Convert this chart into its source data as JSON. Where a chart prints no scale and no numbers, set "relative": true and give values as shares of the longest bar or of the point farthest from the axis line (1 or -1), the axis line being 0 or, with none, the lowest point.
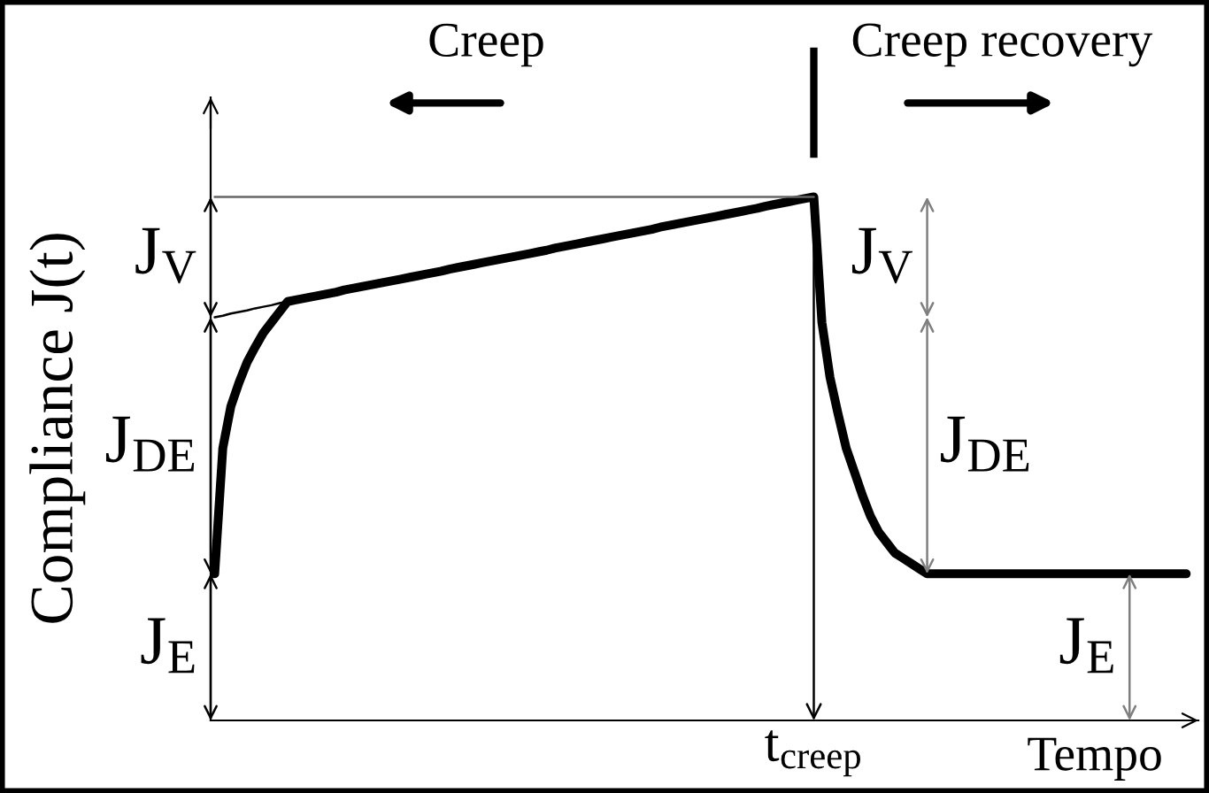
{
  "chart_data": {
    "type": "line",
    "relative": true,
    "ylabel": "Compliance J(t)",
    "xlabel": "Tempo",
    "categories": [
      null,
      null,
      null,
      null,
      null,
      null,
      null,
      null,
      null,
      null,
      null,
      null,
      null,
      null,
      null,
      null,
      null,
      null,
      null,
      null,
      null,
      null,
      null,
      null,
      null,
      null,
      null,
      null,
      null,
      null,
      null,
      null,
      null,
      null,
      null,
      null,
      null,
      null,
      null,
      null,
      null,
      null,
      null,
      null,
      null,
      null,
      null,
      null,
      null,
      null,
      null,
      null,
      null,
      null,
      null,
      null,
      null,
      null,
      null,
      null,
      null,
      null,
      null,
      null,
      null,
      null,
      null,
      null,
      null,
      null,
      null,
      null,
      null,
      null,
      null,
      null,
      null,
      null,
      null,
      null,
      null,
      null,
      null,
      null,
      null,
      null,
      null,
      null,
      null,
      null,
      null,
      null,
      null,
      null,
      null,
      null,
      null,
      null,
      null,
      null,
      null,
      null,
      null,
      null,
      null,
      null,
      null,
      null,
      null,
      null,
      null,
      null,
      null,
      null,
      null,
      null,
      null,
      null,
      null,
      null,
      null,
      null
    ],
    "annotations": [
      "Creep",
      "Creep recovery",
      "t$_{creep}$",
      "J$_{V}$",
      "J$_{DE}$",
      "J$_{E}$",
      "J$_{V}$",
      "J$_{DE}$",
      "J$_{E}$"
    ],
    "series": [
      {
        "color": "#000000",
        "values": [
          0.28,
          0.52,
          0.6,
          0.645,
          0.684,
          0.713,
          0.74,
          0.76,
          0.78,
          0.8,
          0.803,
          0.806,
          0.809,
          0.812,
          0.815,
          0.818,
          0.822,
          0.825,
          0.828,
          0.831,
          0.834,
          0.837,
          0.84,
          0.843,
          0.846,
          0.849,
          0.852,
          0.855,
          0.858,
          0.862,
          0.865,
          0.868,
          0.871,
          0.874,
          0.877,
          0.88,
          0.883,
          0.886,
          0.889,
          0.892,
          0.895,
          0.898,
          0.902,
          0.905,
          0.908,
          0.911,
          0.914,
          0.917,
          0.92,
          0.923,
          0.926,
          0.929,
          0.932,
          0.935,
          0.938,
          0.942,
          0.945,
          0.948,
          0.951,
          0.954,
          0.957,
          0.96,
          0.963,
          0.966,
          0.969,
          0.972,
          0.975,
          0.978,
          0.982,
          0.985,
          0.988,
          0.991,
          0.994,
          0.997,
          1.0,
          0.76,
          0.655,
          0.585,
          0.52,
          0.475,
          0.43,
          0.39,
          0.36,
          0.34,
          0.32,
          0.31,
          0.3,
          0.29,
          0.28,
          0.28,
          0.28,
          0.28,
          0.28,
          0.28,
          0.28,
          0.28,
          0.28,
          0.28,
          0.28,
          0.28,
          0.28,
          0.28,
          0.28,
          0.28,
          0.28,
          0.28,
          0.28,
          0.28,
          0.28,
          0.28,
          0.28,
          0.28,
          0.28,
          0.28,
          0.28,
          0.28,
          0.28,
          0.28,
          0.28,
          0.28,
          0.28,
          null
        ]
      },
      {
        "color": "#000000",
        "values": [
          0.77,
          0.773,
          0.777,
          0.78,
          0.783,
          0.787,
          0.79,
          0.793,
          0.797,
          0.8,
          null,
          null,
          null,
          null,
          null,
          null,
          null,
          null,
          null,
          null,
          null,
          null,
          null,
          null,
          null,
          null,
          null,
          null,
          null,
          null,
          null,
          null,
          null,
          null,
          null,
          null,
          null,
          null,
          null,
          null,
          null,
          null,
          null,
          null,
          null,
          null,
          null,
          null,
          null,
          null,
          null,
          null,
          null,
          null,
          null,
          null,
          null,
          null,
          null,
          null,
          null,
          null,
          null,
          null,
          null,
          null,
          null,
          null,
          null,
          null,
          null,
          null,
          null,
          null,
          null,
          null,
          null,
          null,
          null,
          null,
          null,
          null,
          null,
          null,
          null,
          null,
          null,
          null,
          null,
          null,
          null,
          null,
          null,
          null,
          null,
          null,
          null,
          null,
          null,
          null,
          null,
          null,
          null,
          null,
          null,
          null,
          null,
          null,
          null,
          null,
          null,
          null,
          null,
          null,
          null,
          null,
          null,
          null,
          null,
          null,
          null,
          null
        ]
      },
      {
        "color": "#666666",
        "values": [
          1,
          1,
          1,
          1,
          1,
          1,
          1,
          1,
          1,
          1,
          1,
          1,
          1,
          1,
          1,
          1,
          1,
          1,
          1,
          1,
          1,
          1,
          1,
          1,
          1,
          1,
          1,
          1,
          1,
          1,
          1,
          1,
          1,
          1,
          1,
          1,
          1,
          1,
          1,
          1,
          1,
          1,
          1,
          1,
          1,
          1,
          1,
          1,
          1,
          1,
          1,
          1,
          1,
          1,
          1,
          1,
          1,
          1,
          1,
          1,
          1,
          1,
          1,
          1,
          1,
          1,
          1,
          1,
          1,
          1,
          1,
          1,
          1,
          1,
          1,
          null,
          null,
          null,
          null,
          null,
          null,
          null,
          null,
          null,
          null,
          null,
          null,
          null,
          null,
          null,
          null,
          null,
          null,
          null,
          null,
          null,
          null,
          null,
          null,
          null,
          null,
          null,
          null,
          null,
          null,
          null,
          null,
          null,
          null,
          null,
          null,
          null,
          null,
          null,
          null,
          null,
          null,
          null,
          null,
          null,
          null,
          null
        ]
      }
    ]
  }
}
